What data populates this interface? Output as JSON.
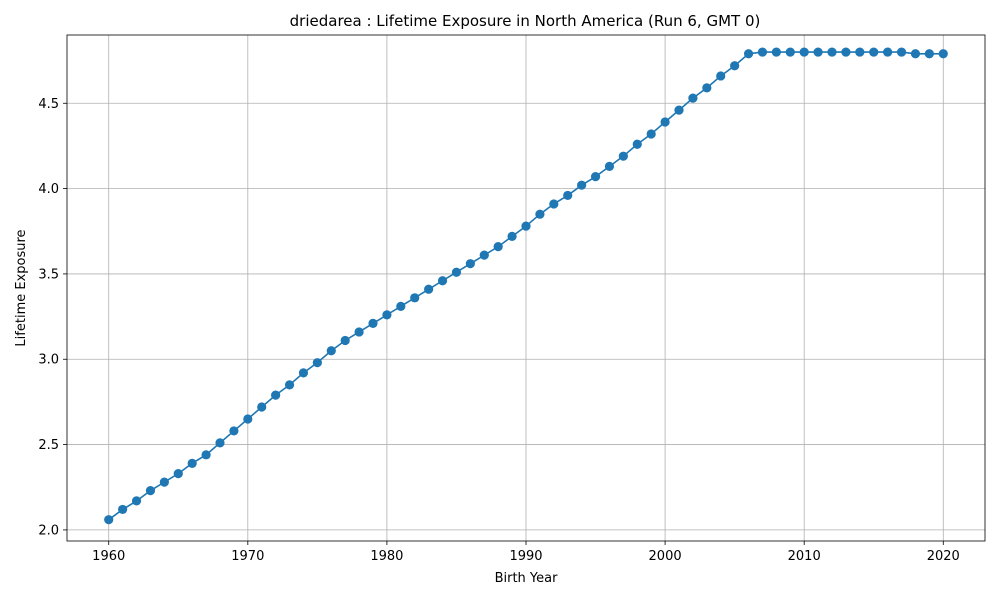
{
  "chart_data": {
    "type": "line",
    "title": "driedarea : Lifetime Exposure in North America (Run 6, GMT 0)",
    "xlabel": "Birth Year",
    "ylabel": "Lifetime Exposure",
    "xlim": [
      1957,
      2023
    ],
    "ylim": [
      1.935,
      4.9
    ],
    "xticks": [
      1960,
      1970,
      1980,
      1990,
      2000,
      2010,
      2020
    ],
    "yticks": [
      2.0,
      2.5,
      3.0,
      3.5,
      4.0,
      4.5
    ],
    "ytick_labels": [
      "2.0",
      "2.5",
      "3.0",
      "3.5",
      "4.0",
      "4.5"
    ],
    "grid": true,
    "color": "#1f77b4",
    "marker": "circle",
    "x": [
      1960,
      1961,
      1962,
      1963,
      1964,
      1965,
      1966,
      1967,
      1968,
      1969,
      1970,
      1971,
      1972,
      1973,
      1974,
      1975,
      1976,
      1977,
      1978,
      1979,
      1980,
      1981,
      1982,
      1983,
      1984,
      1985,
      1986,
      1987,
      1988,
      1989,
      1990,
      1991,
      1992,
      1993,
      1994,
      1995,
      1996,
      1997,
      1998,
      1999,
      2000,
      2001,
      2002,
      2003,
      2004,
      2005,
      2006,
      2007,
      2008,
      2009,
      2010,
      2011,
      2012,
      2013,
      2014,
      2015,
      2016,
      2017,
      2018,
      2019,
      2020
    ],
    "y": [
      2.06,
      2.12,
      2.17,
      2.23,
      2.28,
      2.33,
      2.39,
      2.44,
      2.51,
      2.58,
      2.65,
      2.72,
      2.79,
      2.85,
      2.92,
      2.98,
      3.05,
      3.11,
      3.16,
      3.21,
      3.26,
      3.31,
      3.36,
      3.41,
      3.46,
      3.51,
      3.56,
      3.61,
      3.66,
      3.72,
      3.78,
      3.85,
      3.91,
      3.96,
      4.02,
      4.07,
      4.13,
      4.19,
      4.26,
      4.32,
      4.39,
      4.46,
      4.53,
      4.59,
      4.66,
      4.72,
      4.79,
      4.8,
      4.8,
      4.8,
      4.8,
      4.8,
      4.8,
      4.8,
      4.8,
      4.8,
      4.8,
      4.8,
      4.79,
      4.79,
      4.79
    ]
  }
}
